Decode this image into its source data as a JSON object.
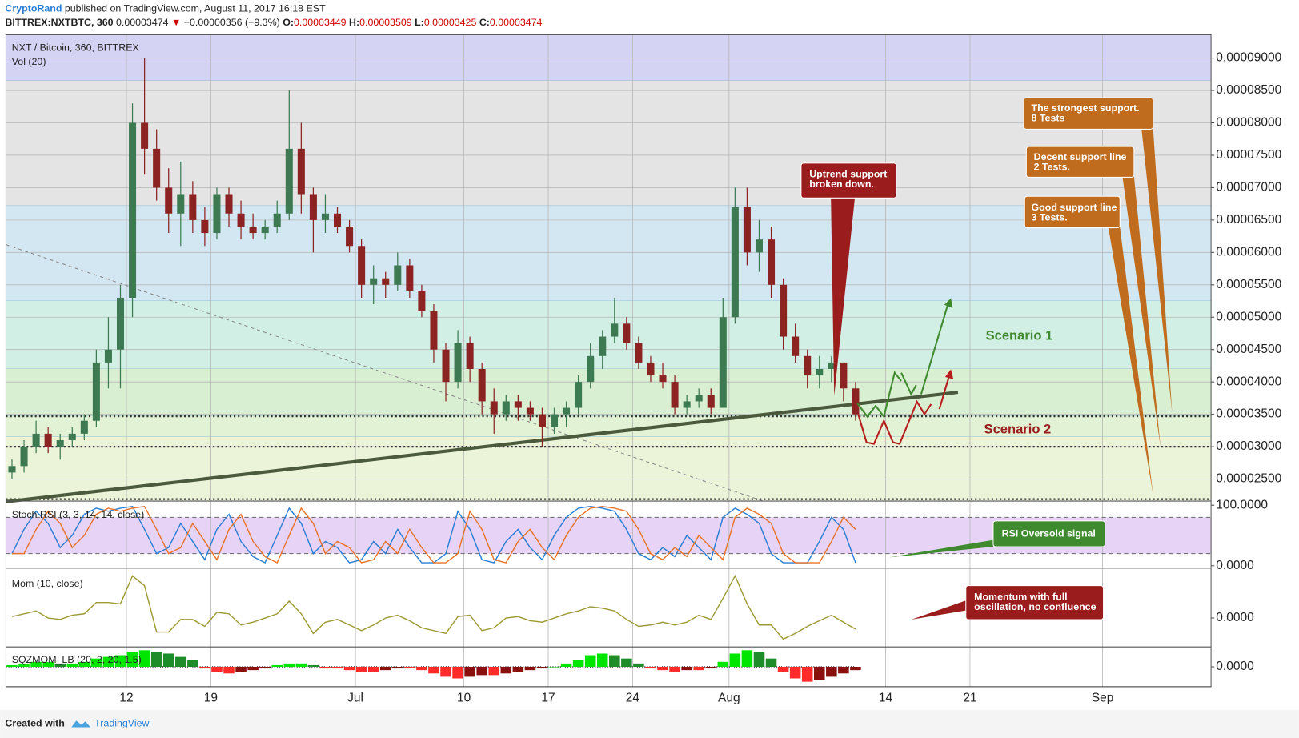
{
  "header": {
    "author": "CryptoRand",
    "published": "published on TradingView.com, August 11, 2017 16:18 EST",
    "symbol": "BITTREX:NXTBTC, 360",
    "last": "0.00003474",
    "change": "−0.00000356 (−9.3%)",
    "ohlc": [
      {
        "label": "O:",
        "value": "0.00003449"
      },
      {
        "label": "H:",
        "value": "0.00003509"
      },
      {
        "label": "L:",
        "value": "0.00003425"
      },
      {
        "label": "C:",
        "value": "0.00003474"
      }
    ]
  },
  "footer": {
    "created": "Created with",
    "brand": "TradingView"
  },
  "chart_data": [
    {
      "type": "candlestick",
      "title": "NXT / Bitcoin, 360, BITTREX",
      "subtitle": "Vol (20)",
      "x": [
        "2017-06-02",
        "2017-06-03",
        "2017-06-04",
        "2017-06-05",
        "2017-06-06",
        "2017-06-07",
        "2017-06-08",
        "2017-06-09",
        "2017-06-10",
        "2017-06-11",
        "2017-06-12",
        "2017-06-13",
        "2017-06-14",
        "2017-06-15",
        "2017-06-16",
        "2017-06-17",
        "2017-06-18",
        "2017-06-19",
        "2017-06-20",
        "2017-06-21",
        "2017-06-22",
        "2017-06-23",
        "2017-06-24",
        "2017-06-25",
        "2017-06-26",
        "2017-06-27",
        "2017-06-28",
        "2017-06-29",
        "2017-06-30",
        "2017-07-01",
        "2017-07-02",
        "2017-07-03",
        "2017-07-04",
        "2017-07-05",
        "2017-07-06",
        "2017-07-07",
        "2017-07-08",
        "2017-07-09",
        "2017-07-10",
        "2017-07-11",
        "2017-07-12",
        "2017-07-13",
        "2017-07-14",
        "2017-07-15",
        "2017-07-16",
        "2017-07-17",
        "2017-07-18",
        "2017-07-19",
        "2017-07-20",
        "2017-07-21",
        "2017-07-22",
        "2017-07-23",
        "2017-07-24",
        "2017-07-25",
        "2017-07-26",
        "2017-07-27",
        "2017-07-28",
        "2017-07-29",
        "2017-07-30",
        "2017-07-31",
        "2017-08-01",
        "2017-08-02",
        "2017-08-03",
        "2017-08-04",
        "2017-08-05",
        "2017-08-06",
        "2017-08-07",
        "2017-08-08",
        "2017-08-09",
        "2017-08-10",
        "2017-08-11"
      ],
      "open": [
        2.6e-05,
        2.7e-05,
        3e-05,
        3.2e-05,
        3e-05,
        3.1e-05,
        3.2e-05,
        3.4e-05,
        4.3e-05,
        4.5e-05,
        5.3e-05,
        8e-05,
        7.6e-05,
        7e-05,
        6.6e-05,
        6.9e-05,
        6.5e-05,
        6.3e-05,
        6.9e-05,
        6.6e-05,
        6.4e-05,
        6.3e-05,
        6.4e-05,
        6.6e-05,
        7.6e-05,
        6.9e-05,
        6.5e-05,
        6.6e-05,
        6.4e-05,
        6.1e-05,
        5.5e-05,
        5.6e-05,
        5.5e-05,
        5.8e-05,
        5.4e-05,
        5.1e-05,
        4.5e-05,
        4e-05,
        4.6e-05,
        4.2e-05,
        3.7e-05,
        3.5e-05,
        3.7e-05,
        3.6e-05,
        3.5e-05,
        3.3e-05,
        3.5e-05,
        3.6e-05,
        4e-05,
        4.4e-05,
        4.7e-05,
        4.9e-05,
        4.6e-05,
        4.3e-05,
        4.1e-05,
        4e-05,
        3.6e-05,
        3.7e-05,
        3.8e-05,
        3.6e-05,
        5e-05,
        6.7e-05,
        6e-05,
        6.2e-05,
        5.5e-05,
        4.7e-05,
        4.4e-05,
        4.1e-05,
        4.2e-05,
        4.3e-05,
        3.9e-05
      ],
      "high": [
        2.8e-05,
        3.1e-05,
        3.4e-05,
        3.3e-05,
        3.2e-05,
        3.3e-05,
        3.5e-05,
        4.5e-05,
        5e-05,
        5.5e-05,
        8.3e-05,
        9e-05,
        7.9e-05,
        7.3e-05,
        7.4e-05,
        7.1e-05,
        6.7e-05,
        7e-05,
        7e-05,
        6.8e-05,
        6.6e-05,
        6.5e-05,
        6.8e-05,
        8.5e-05,
        8e-05,
        7e-05,
        6.9e-05,
        6.7e-05,
        6.5e-05,
        6.2e-05,
        5.8e-05,
        5.7e-05,
        6e-05,
        5.9e-05,
        5.5e-05,
        5.2e-05,
        4.6e-05,
        4.8e-05,
        4.7e-05,
        4.3e-05,
        3.9e-05,
        3.8e-05,
        3.8e-05,
        3.7e-05,
        3.6e-05,
        3.6e-05,
        3.7e-05,
        4.1e-05,
        4.6e-05,
        4.8e-05,
        5.3e-05,
        5e-05,
        4.7e-05,
        4.4e-05,
        4.3e-05,
        4.1e-05,
        3.8e-05,
        3.9e-05,
        3.9e-05,
        5.3e-05,
        7e-05,
        7e-05,
        6.5e-05,
        6.4e-05,
        5.6e-05,
        4.9e-05,
        4.5e-05,
        4.4e-05,
        4.4e-05,
        4.3e-05,
        4e-05
      ],
      "low": [
        2.5e-05,
        2.6e-05,
        2.9e-05,
        2.9e-05,
        2.8e-05,
        3e-05,
        3.1e-05,
        3.3e-05,
        3.9e-05,
        3.9e-05,
        5e-05,
        7.2e-05,
        6.8e-05,
        6.3e-05,
        6.1e-05,
        6.3e-05,
        6.1e-05,
        6.2e-05,
        6.4e-05,
        6.2e-05,
        6.2e-05,
        6.2e-05,
        6.3e-05,
        6.5e-05,
        6.6e-05,
        6e-05,
        6.3e-05,
        6.3e-05,
        6e-05,
        5.3e-05,
        5.2e-05,
        5.3e-05,
        5.4e-05,
        5.3e-05,
        5e-05,
        4.3e-05,
        3.7e-05,
        3.9e-05,
        4e-05,
        3.5e-05,
        3.2e-05,
        3.4e-05,
        3.4e-05,
        3.4e-05,
        3e-05,
        3.2e-05,
        3.3e-05,
        3.5e-05,
        3.9e-05,
        4.2e-05,
        4.6e-05,
        4.5e-05,
        4.2e-05,
        4e-05,
        3.9e-05,
        3.5e-05,
        3.5e-05,
        3.6e-05,
        3.5e-05,
        3.6e-05,
        4.9e-05,
        5.8e-05,
        5.7e-05,
        5.3e-05,
        4.5e-05,
        4.3e-05,
        3.9e-05,
        3.9e-05,
        4e-05,
        3.7e-05,
        3.4e-05
      ],
      "close": [
        2.7e-05,
        3e-05,
        3.2e-05,
        3e-05,
        3.1e-05,
        3.2e-05,
        3.4e-05,
        4.3e-05,
        4.5e-05,
        5.3e-05,
        8e-05,
        7.6e-05,
        7e-05,
        6.6e-05,
        6.9e-05,
        6.5e-05,
        6.3e-05,
        6.9e-05,
        6.6e-05,
        6.4e-05,
        6.3e-05,
        6.4e-05,
        6.6e-05,
        7.6e-05,
        6.9e-05,
        6.5e-05,
        6.6e-05,
        6.4e-05,
        6.1e-05,
        5.5e-05,
        5.6e-05,
        5.5e-05,
        5.8e-05,
        5.4e-05,
        5.1e-05,
        4.5e-05,
        4e-05,
        4.6e-05,
        4.2e-05,
        3.7e-05,
        3.5e-05,
        3.7e-05,
        3.6e-05,
        3.5e-05,
        3.3e-05,
        3.5e-05,
        3.6e-05,
        4e-05,
        4.4e-05,
        4.7e-05,
        4.9e-05,
        4.6e-05,
        4.3e-05,
        4.1e-05,
        4e-05,
        3.6e-05,
        3.7e-05,
        3.8e-05,
        3.6e-05,
        5e-05,
        6.7e-05,
        6e-05,
        6.2e-05,
        5.5e-05,
        4.7e-05,
        4.4e-05,
        4.1e-05,
        4.2e-05,
        4.3e-05,
        3.9e-05,
        3.5e-05
      ],
      "up_color": "#3d7a52",
      "down_color": "#8b2323",
      "xlim": [
        "2017-06-02",
        "2017-09-10"
      ],
      "xticks": [
        {
          "value": "2017-06-12",
          "label": "12"
        },
        {
          "value": "2017-06-19",
          "label": "19"
        },
        {
          "value": "2017-07-01",
          "label": "Jul"
        },
        {
          "value": "2017-07-10",
          "label": "10"
        },
        {
          "value": "2017-07-17",
          "label": "17"
        },
        {
          "value": "2017-07-24",
          "label": "24"
        },
        {
          "value": "2017-08-01",
          "label": "Aug"
        },
        {
          "value": "2017-08-14",
          "label": "14"
        },
        {
          "value": "2017-08-21",
          "label": "21"
        },
        {
          "value": "2017-09-01",
          "label": "Sep"
        }
      ],
      "ylim": [
        2.16e-05,
        9.36e-05
      ],
      "yticks": [
        {
          "value": 2.5e-05,
          "label": "0.00002500"
        },
        {
          "value": 3e-05,
          "label": "0.00003000"
        },
        {
          "value": 3.5e-05,
          "label": "0.00003500"
        },
        {
          "value": 4e-05,
          "label": "0.00004000"
        },
        {
          "value": 4.5e-05,
          "label": "0.00004500"
        },
        {
          "value": 5e-05,
          "label": "0.00005000"
        },
        {
          "value": 5.5e-05,
          "label": "0.00005500"
        },
        {
          "value": 6e-05,
          "label": "0.00006000"
        },
        {
          "value": 6.5e-05,
          "label": "0.00006500"
        },
        {
          "value": 7e-05,
          "label": "0.00007000"
        },
        {
          "value": 7.5e-05,
          "label": "0.00007500"
        },
        {
          "value": 8e-05,
          "label": "0.00008000"
        },
        {
          "value": 8.5e-05,
          "label": "0.00008500"
        },
        {
          "value": 9e-05,
          "label": "0.00009000"
        }
      ],
      "grid": true,
      "zones": [
        {
          "from": 8.65e-05,
          "to": 9.36e-05,
          "color": "#d5d3f3"
        },
        {
          "from": 6.72e-05,
          "to": 8.65e-05,
          "color": "#e4e4e4"
        },
        {
          "from": 5.25e-05,
          "to": 6.72e-05,
          "color": "#d3e7f3"
        },
        {
          "from": 4.2e-05,
          "to": 5.25e-05,
          "color": "#d2efe5"
        },
        {
          "from": 3.47e-05,
          "to": 4.2e-05,
          "color": "#d8efd2"
        },
        {
          "from": 3.15e-05,
          "to": 3.47e-05,
          "color": "#e2f2d5"
        },
        {
          "from": 2.16e-05,
          "to": 3.15e-05,
          "color": "#ebf3d8"
        }
      ],
      "levels": [
        3.47e-05,
        3e-05,
        2.19e-05
      ],
      "trendline": {
        "x": [
          "2017-06-02",
          "2017-08-20"
        ],
        "y": [
          2.15e-05,
          3.84e-05
        ]
      },
      "dashed_line": {
        "x": [
          "2017-06-02",
          "2017-08-04"
        ],
        "y": [
          6.12e-05,
          2.15e-05
        ]
      },
      "annotations": [
        {
          "text": [
            "Uptrend support",
            "broken down."
          ]
        },
        {
          "text": [
            "The strongest support.",
            "8 Tests"
          ]
        },
        {
          "text": [
            "Decent support line",
            "2 Tests."
          ]
        },
        {
          "text": [
            "Good support line",
            "3 Tests."
          ]
        },
        {
          "text": [
            "Scenario 1"
          ]
        },
        {
          "text": [
            "Scenario 2"
          ]
        }
      ]
    },
    {
      "type": "line",
      "title": "Stoch RSI (3, 3, 14, 14, close)",
      "series": [
        {
          "color": "#2a7fd4",
          "values": [
            20,
            60,
            90,
            70,
            30,
            50,
            85,
            95,
            90,
            95,
            98,
            60,
            20,
            30,
            70,
            40,
            10,
            60,
            85,
            40,
            15,
            5,
            50,
            95,
            70,
            20,
            40,
            30,
            5,
            10,
            40,
            20,
            60,
            30,
            5,
            5,
            20,
            90,
            60,
            10,
            5,
            40,
            60,
            30,
            10,
            50,
            80,
            95,
            98,
            95,
            90,
            60,
            20,
            10,
            30,
            15,
            50,
            30,
            10,
            80,
            95,
            85,
            70,
            20,
            5,
            5,
            5,
            40,
            80,
            60,
            5
          ]
        },
        {
          "color": "#e8742a",
          "values": [
            20,
            20,
            60,
            90,
            70,
            30,
            50,
            85,
            95,
            90,
            95,
            98,
            60,
            20,
            30,
            70,
            40,
            10,
            60,
            85,
            40,
            15,
            5,
            50,
            95,
            70,
            20,
            40,
            30,
            5,
            10,
            40,
            20,
            60,
            30,
            5,
            5,
            20,
            90,
            60,
            10,
            5,
            40,
            60,
            30,
            10,
            50,
            80,
            95,
            98,
            95,
            90,
            60,
            20,
            10,
            30,
            15,
            50,
            30,
            10,
            80,
            95,
            85,
            70,
            20,
            5,
            5,
            5,
            40,
            80,
            60
          ]
        }
      ],
      "ylim": [
        0,
        100
      ],
      "yticks": [
        {
          "value": 100,
          "label": "100.0000"
        },
        {
          "value": 0,
          "label": "0.0000"
        }
      ],
      "levels": [
        80,
        20
      ],
      "band_color": "#e6d3f6",
      "annotations": [
        {
          "text": [
            "RSI Oversold signal"
          ]
        }
      ]
    },
    {
      "type": "line",
      "title": "Mom (10, close)",
      "color": "#9e9b36",
      "values": [
        1e-06,
        3e-06,
        5e-06,
        0.0,
        -1e-06,
        2e-06,
        3e-06,
        1.1e-05,
        1.1e-05,
        1e-05,
        3e-05,
        2.3e-05,
        -1e-05,
        -1e-05,
        -1e-06,
        -1e-06,
        -6e-06,
        4e-06,
        3e-06,
        -5e-06,
        -3e-06,
        0.0,
        3e-06,
        1.2e-05,
        3e-06,
        -1.1e-05,
        -3e-06,
        -1e-06,
        -5e-06,
        -9e-06,
        -5e-06,
        0.0,
        2e-06,
        -2e-06,
        -7e-06,
        -9e-06,
        -1.1e-05,
        1e-06,
        2e-06,
        -9e-06,
        -7e-06,
        0.0,
        1e-06,
        -2e-06,
        -3e-06,
        0.0,
        3e-06,
        5e-06,
        8e-06,
        7e-06,
        5e-06,
        -1e-06,
        -6e-06,
        -5e-06,
        -3e-06,
        -5e-06,
        -3e-06,
        2e-06,
        -1e-06,
        1.4e-05,
        3e-05,
        1e-05,
        -5e-06,
        -5e-06,
        -1.5e-05,
        -1.1e-05,
        -6e-06,
        -2e-06,
        2e-06,
        -3e-06,
        -8e-06
      ],
      "ylim": [
        -2.06e-05,
        3.54e-05
      ],
      "yticks": [
        {
          "value": 0,
          "label": "0.0000"
        }
      ],
      "annotations": [
        {
          "text": [
            "Momentum with full",
            "oscillation, no confluence"
          ]
        }
      ]
    },
    {
      "type": "bar",
      "title": "SQZMOM_LB (20, 2, 20, 1.5)",
      "values": [
        1e-06,
        2e-06,
        3e-06,
        3e-06,
        2e-06,
        2e-06,
        3e-06,
        5e-06,
        6e-06,
        7e-06,
        9e-06,
        1e-05,
        9e-06,
        8e-06,
        6e-06,
        4e-06,
        -1e-06,
        -3e-06,
        -4e-06,
        -3e-06,
        -2e-06,
        -1e-06,
        1e-06,
        2e-06,
        2e-06,
        1e-06,
        -1e-06,
        -1e-06,
        -2e-06,
        -3e-06,
        -3e-06,
        -2e-06,
        -1e-06,
        -1e-06,
        -2e-06,
        -4e-06,
        -6e-06,
        -7e-06,
        -6e-06,
        -5e-06,
        -5e-06,
        -4e-06,
        -3e-06,
        -2e-06,
        -1e-06,
        0.0,
        2e-06,
        4e-06,
        7e-06,
        8e-06,
        7e-06,
        5e-06,
        2e-06,
        -1e-06,
        -2e-06,
        -3e-06,
        -2e-06,
        -2e-06,
        -1e-06,
        3e-06,
        8e-06,
        1e-05,
        9e-06,
        5e-06,
        -3e-06,
        -7e-06,
        -9e-06,
        -8e-06,
        -6e-06,
        -4e-06,
        -2e-06
      ],
      "ylim": [
        -1.2e-05,
        1.2e-05
      ],
      "yticks": [
        {
          "value": 0,
          "label": "0.0000"
        }
      ],
      "colors": {
        "up_rising": "#00e600",
        "up_falling": "#1f8c2a",
        "down_falling": "#ff2a2a",
        "down_rising": "#8a1010"
      }
    }
  ]
}
